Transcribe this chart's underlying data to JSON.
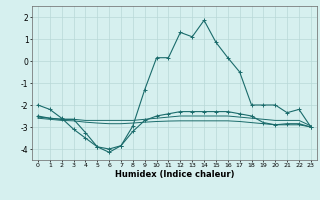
{
  "xlabel": "Humidex (Indice chaleur)",
  "bg_color": "#d6f0ef",
  "grid_color": "#b8d8d8",
  "line_color": "#1a6b6b",
  "xlim": [
    -0.5,
    23.5
  ],
  "ylim": [
    -4.5,
    2.5
  ],
  "xticks": [
    0,
    1,
    2,
    3,
    4,
    5,
    6,
    7,
    8,
    9,
    10,
    11,
    12,
    13,
    14,
    15,
    16,
    17,
    18,
    19,
    20,
    21,
    22,
    23
  ],
  "yticks": [
    -4,
    -3,
    -2,
    -1,
    0,
    1,
    2
  ],
  "line1_x": [
    0,
    1,
    2,
    3,
    4,
    5,
    6,
    7,
    8,
    9,
    10,
    11,
    12,
    13,
    14,
    15,
    16,
    17,
    18,
    19,
    20,
    21,
    22,
    23
  ],
  "line1_y": [
    -2.0,
    -2.2,
    -2.6,
    -3.1,
    -3.5,
    -3.9,
    -4.0,
    -3.85,
    -2.95,
    -1.3,
    0.15,
    0.15,
    1.3,
    1.1,
    1.85,
    0.85,
    0.15,
    -0.5,
    -2.0,
    -2.0,
    -2.0,
    -2.35,
    -2.2,
    -3.0
  ],
  "line2_x": [
    0,
    1,
    2,
    3,
    4,
    5,
    6,
    7,
    8,
    9,
    10,
    11,
    12,
    13,
    14,
    15,
    16,
    17,
    18,
    19,
    20,
    21,
    22,
    23
  ],
  "line2_y": [
    -2.5,
    -2.6,
    -2.65,
    -2.65,
    -3.25,
    -3.9,
    -4.15,
    -3.85,
    -3.2,
    -2.7,
    -2.5,
    -2.4,
    -2.3,
    -2.3,
    -2.3,
    -2.3,
    -2.3,
    -2.4,
    -2.5,
    -2.8,
    -2.9,
    -2.85,
    -2.85,
    -3.0
  ],
  "line3_x": [
    0,
    1,
    2,
    3,
    4,
    5,
    6,
    7,
    8,
    9,
    10,
    11,
    12,
    13,
    14,
    15,
    16,
    17,
    18,
    19,
    20,
    21,
    22,
    23
  ],
  "line3_y": [
    -2.55,
    -2.6,
    -2.65,
    -2.65,
    -2.7,
    -2.7,
    -2.7,
    -2.7,
    -2.7,
    -2.65,
    -2.6,
    -2.55,
    -2.5,
    -2.5,
    -2.5,
    -2.5,
    -2.5,
    -2.55,
    -2.6,
    -2.65,
    -2.7,
    -2.7,
    -2.7,
    -2.95
  ],
  "line4_x": [
    0,
    1,
    2,
    3,
    4,
    5,
    6,
    7,
    8,
    9,
    10,
    11,
    12,
    13,
    14,
    15,
    16,
    17,
    18,
    19,
    20,
    21,
    22,
    23
  ],
  "line4_y": [
    -2.6,
    -2.65,
    -2.7,
    -2.72,
    -2.78,
    -2.82,
    -2.85,
    -2.85,
    -2.82,
    -2.78,
    -2.75,
    -2.73,
    -2.72,
    -2.72,
    -2.72,
    -2.72,
    -2.72,
    -2.75,
    -2.8,
    -2.85,
    -2.9,
    -2.9,
    -2.9,
    -3.0
  ]
}
